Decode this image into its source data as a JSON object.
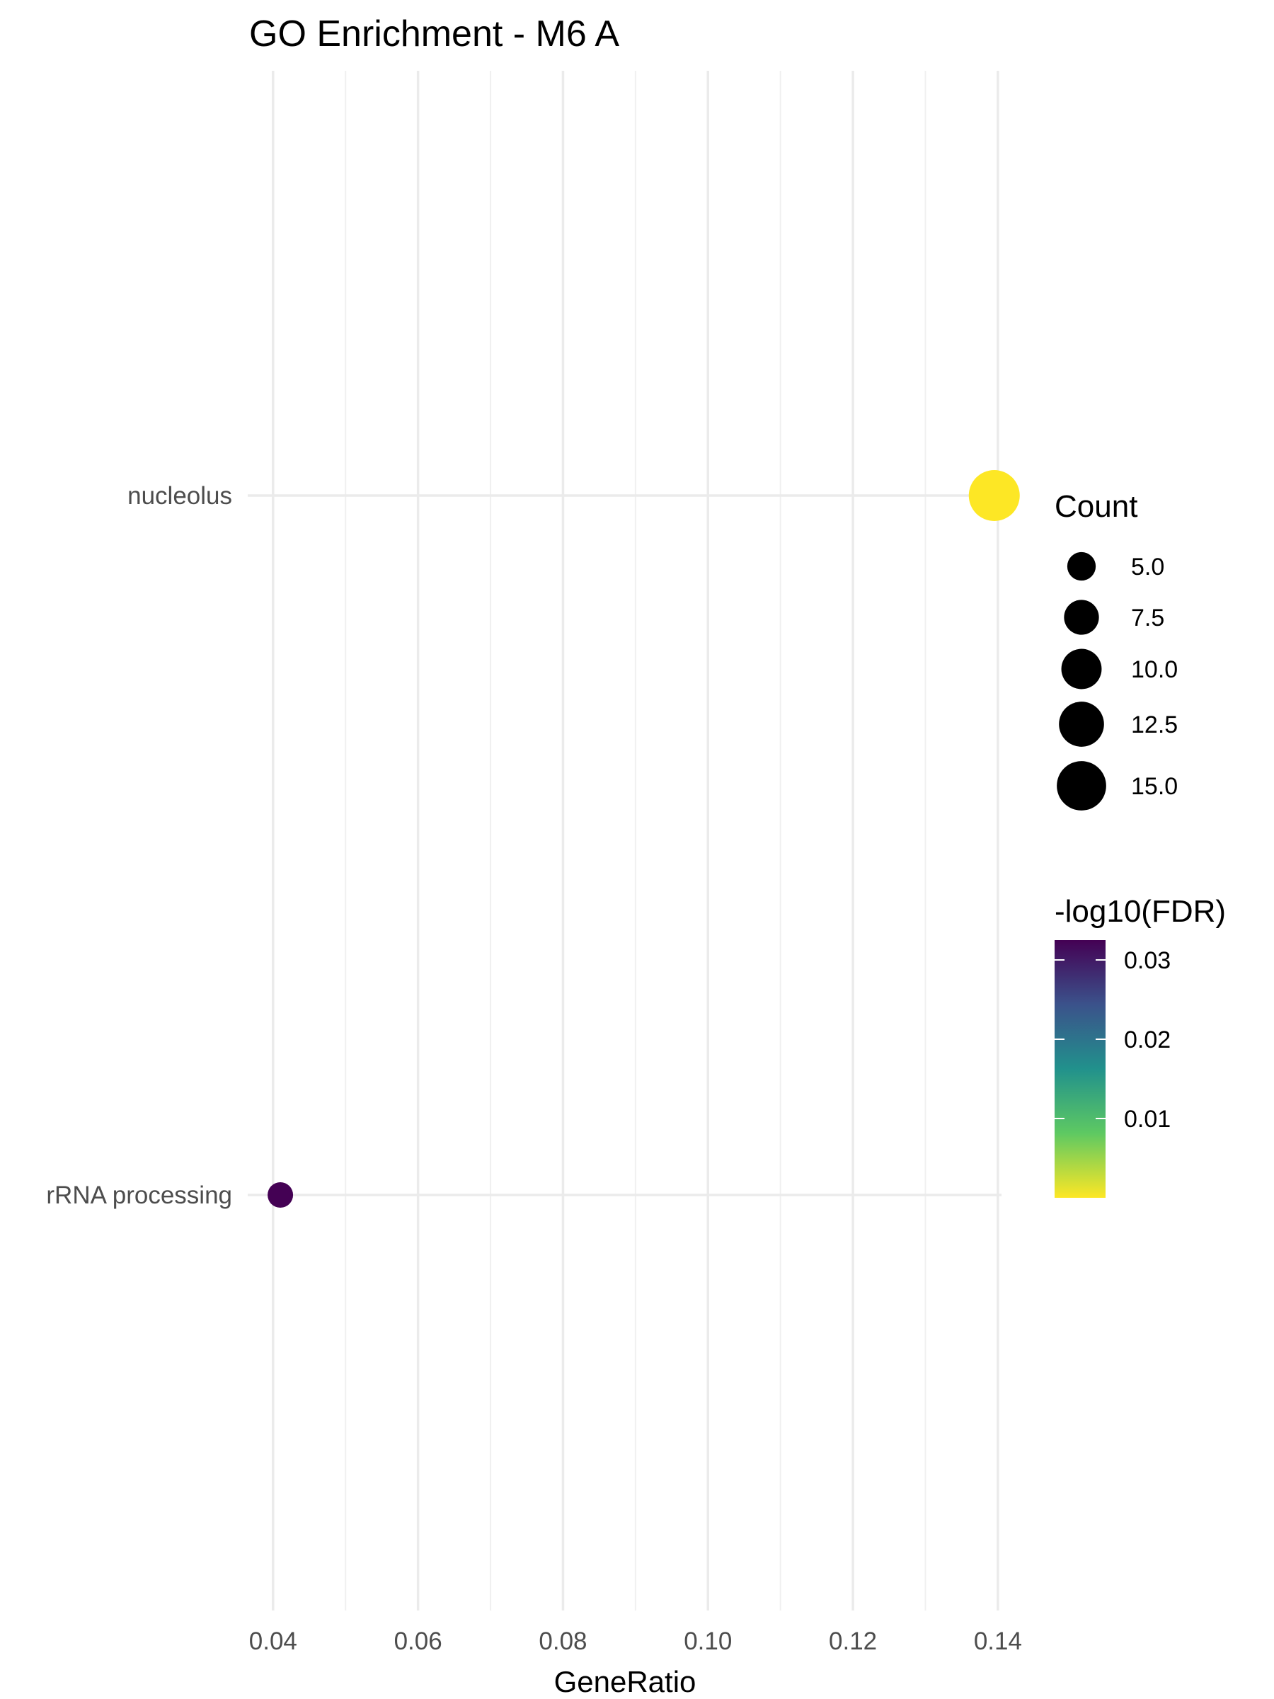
{
  "chart_data": {
    "type": "scatter",
    "title": "GO Enrichment - M6 A",
    "xlabel": "GeneRatio",
    "ylabel": "",
    "xlim": [
      0.0365,
      0.1405
    ],
    "x_ticks": [
      "0.04",
      "0.06",
      "0.08",
      "0.10",
      "0.12",
      "0.14"
    ],
    "x_tick_values": [
      0.04,
      0.06,
      0.08,
      0.1,
      0.12,
      0.14
    ],
    "x_minor_values": [
      0.05,
      0.07,
      0.09,
      0.11,
      0.13
    ],
    "categories": [
      "nucleolus",
      "rRNA processing"
    ],
    "grid": true,
    "points": [
      {
        "term": "nucleolus",
        "x": 0.1395,
        "count": 16,
        "fdr": 0.0,
        "color": "#fde725"
      },
      {
        "term": "rRNA processing",
        "x": 0.041,
        "count": 4,
        "fdr": 0.033,
        "color": "#440154"
      }
    ],
    "size_legend": {
      "title": "Count",
      "labels": [
        "5.0",
        "7.5",
        "10.0",
        "12.5",
        "15.0"
      ],
      "values": [
        5.0,
        7.5,
        10.0,
        12.5,
        15.0
      ]
    },
    "color_legend": {
      "title": "-log10(FDR)",
      "labels": [
        "0.03",
        "0.02",
        "0.01"
      ],
      "values": [
        0.03,
        0.02,
        0.01
      ],
      "range": [
        0.0,
        0.0325
      ],
      "colors": [
        "#fde725",
        "#5ec962",
        "#21918c",
        "#3b528b",
        "#440154"
      ]
    },
    "legend_position": "right"
  }
}
